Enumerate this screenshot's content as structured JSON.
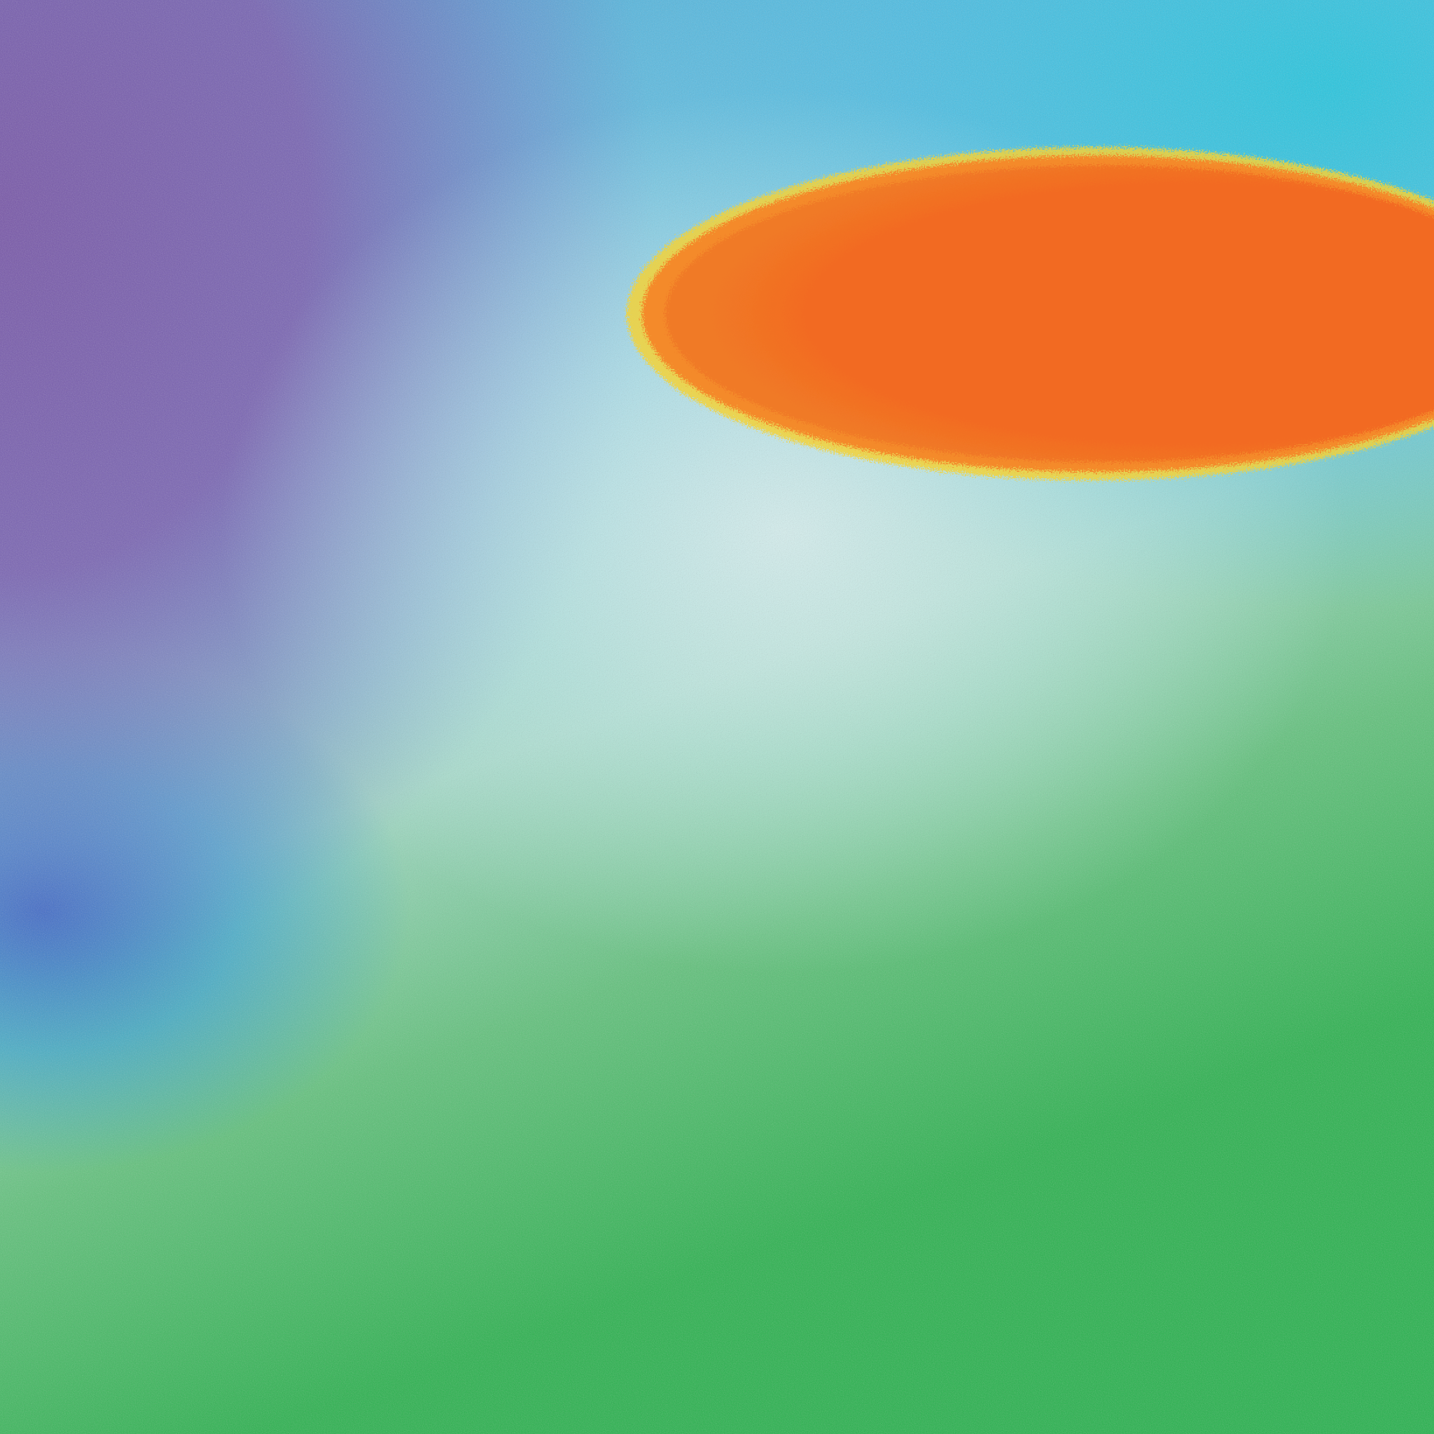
{
  "image": {
    "palette": {
      "purple": "#7654a8",
      "cyan": "#22c6e0",
      "pale_mint": "#d8f0ea",
      "green": "#22b24a",
      "orange": "#f26b22",
      "yellow_rim": "#f2d23a",
      "deep_blue": "#2a5ac8"
    },
    "elements": [
      "purple-corner-haze",
      "cyan-top-band",
      "pale-mint-glow",
      "green-field",
      "orange-ellipse",
      "yellow-ellipse-rim"
    ]
  }
}
